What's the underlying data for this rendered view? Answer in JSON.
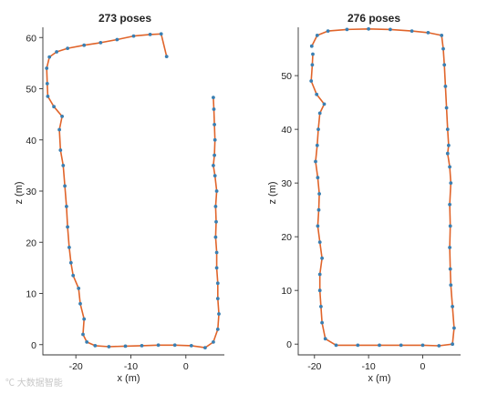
{
  "colors": {
    "trajectory": "#2e6f9e",
    "pose_marker": "#3a7fb2",
    "loop_edge": "#e0642a",
    "axis": "#333333"
  },
  "watermark": "℃ 大数据智能",
  "chart_data": [
    {
      "type": "scatter",
      "title": "273 poses",
      "xlabel": "x (m)",
      "ylabel": "z (m)",
      "xlim": [
        -26,
        7
      ],
      "ylim": [
        -2,
        62
      ],
      "xticks": [
        -20,
        -10,
        0
      ],
      "yticks": [
        0,
        10,
        20,
        30,
        40,
        50,
        60
      ],
      "grid": false,
      "series": [
        {
          "points": [
            [
              -3.5,
              56.3
            ],
            [
              -4.5,
              60.7
            ],
            [
              -6.5,
              60.6
            ],
            [
              -9.5,
              60.3
            ],
            [
              -12.5,
              59.6
            ],
            [
              -15.5,
              59.0
            ],
            [
              -18.5,
              58.5
            ],
            [
              -21.5,
              57.9
            ],
            [
              -23.5,
              57.2
            ],
            [
              -24.8,
              56.2
            ],
            [
              -25.3,
              54.0
            ],
            [
              -25.2,
              51.0
            ],
            [
              -25.1,
              48.5
            ],
            [
              -24.0,
              46.5
            ],
            [
              -22.5,
              44.6
            ],
            [
              -23.0,
              42.0
            ],
            [
              -22.8,
              38.0
            ],
            [
              -22.3,
              35.0
            ],
            [
              -22.0,
              31.0
            ],
            [
              -21.7,
              27.0
            ],
            [
              -21.5,
              23.0
            ],
            [
              -21.2,
              19.0
            ],
            [
              -20.9,
              16.0
            ],
            [
              -20.5,
              13.5
            ],
            [
              -19.5,
              11.0
            ],
            [
              -19.2,
              8.0
            ],
            [
              -18.5,
              5.0
            ],
            [
              -18.7,
              2.0
            ],
            [
              -18.0,
              0.5
            ],
            [
              -16.5,
              -0.2
            ],
            [
              -14.0,
              -0.4
            ],
            [
              -11.0,
              -0.3
            ],
            [
              -8.0,
              -0.2
            ],
            [
              -5.0,
              -0.1
            ],
            [
              -2.0,
              -0.1
            ],
            [
              1.0,
              -0.2
            ],
            [
              3.5,
              -0.6
            ],
            [
              5.0,
              0.5
            ],
            [
              5.8,
              3.0
            ],
            [
              6.0,
              6.0
            ],
            [
              5.8,
              9.0
            ],
            [
              5.8,
              12.0
            ],
            [
              5.6,
              15.0
            ],
            [
              5.6,
              18.0
            ],
            [
              5.4,
              21.0
            ],
            [
              5.5,
              24.0
            ],
            [
              5.4,
              27.0
            ],
            [
              5.6,
              30.0
            ],
            [
              5.3,
              33.0
            ],
            [
              5.0,
              35.0
            ],
            [
              5.2,
              37.0
            ],
            [
              5.3,
              40.0
            ],
            [
              5.2,
              43.0
            ],
            [
              5.1,
              46.0
            ],
            [
              5.0,
              48.3
            ]
          ]
        }
      ]
    },
    {
      "type": "scatter",
      "title": "276 poses",
      "xlabel": "x (m)",
      "ylabel": "z (m)",
      "xlim": [
        -23,
        7
      ],
      "ylim": [
        -2,
        59
      ],
      "xticks": [
        -20,
        -10,
        0
      ],
      "yticks": [
        0,
        10,
        20,
        30,
        40,
        50
      ],
      "grid": false,
      "series": [
        {
          "points": [
            [
              -20.5,
              55.5
            ],
            [
              -19.5,
              57.5
            ],
            [
              -17.5,
              58.3
            ],
            [
              -14.0,
              58.6
            ],
            [
              -10.0,
              58.7
            ],
            [
              -6.0,
              58.6
            ],
            [
              -2.0,
              58.3
            ],
            [
              1.0,
              58.0
            ],
            [
              3.5,
              57.5
            ],
            [
              3.8,
              55.0
            ],
            [
              4.0,
              52.0
            ],
            [
              4.2,
              48.0
            ],
            [
              4.4,
              44.0
            ],
            [
              4.6,
              40.0
            ],
            [
              4.8,
              37.0
            ],
            [
              4.6,
              35.5
            ],
            [
              5.0,
              33.0
            ],
            [
              5.2,
              30.0
            ],
            [
              5.0,
              26.0
            ],
            [
              5.1,
              22.0
            ],
            [
              5.0,
              18.0
            ],
            [
              5.1,
              14.0
            ],
            [
              5.2,
              11.0
            ],
            [
              5.5,
              7.0
            ],
            [
              5.8,
              3.0
            ],
            [
              5.5,
              0.0
            ],
            [
              3.0,
              -0.3
            ],
            [
              0.0,
              -0.2
            ],
            [
              -4.0,
              -0.2
            ],
            [
              -8.0,
              -0.2
            ],
            [
              -12.0,
              -0.2
            ],
            [
              -16.0,
              -0.2
            ],
            [
              -18.0,
              1.0
            ],
            [
              -18.6,
              4.0
            ],
            [
              -18.8,
              7.0
            ],
            [
              -19.0,
              10.0
            ],
            [
              -19.0,
              13.0
            ],
            [
              -18.6,
              16.0
            ],
            [
              -19.0,
              19.0
            ],
            [
              -19.4,
              22.0
            ],
            [
              -19.2,
              25.0
            ],
            [
              -19.1,
              28.0
            ],
            [
              -19.4,
              31.0
            ],
            [
              -19.8,
              34.0
            ],
            [
              -19.5,
              37.0
            ],
            [
              -19.3,
              40.0
            ],
            [
              -19.0,
              43.0
            ],
            [
              -18.2,
              44.7
            ],
            [
              -19.6,
              46.5
            ],
            [
              -20.6,
              49.0
            ],
            [
              -20.4,
              52.0
            ],
            [
              -20.3,
              54.0
            ]
          ]
        }
      ]
    }
  ]
}
